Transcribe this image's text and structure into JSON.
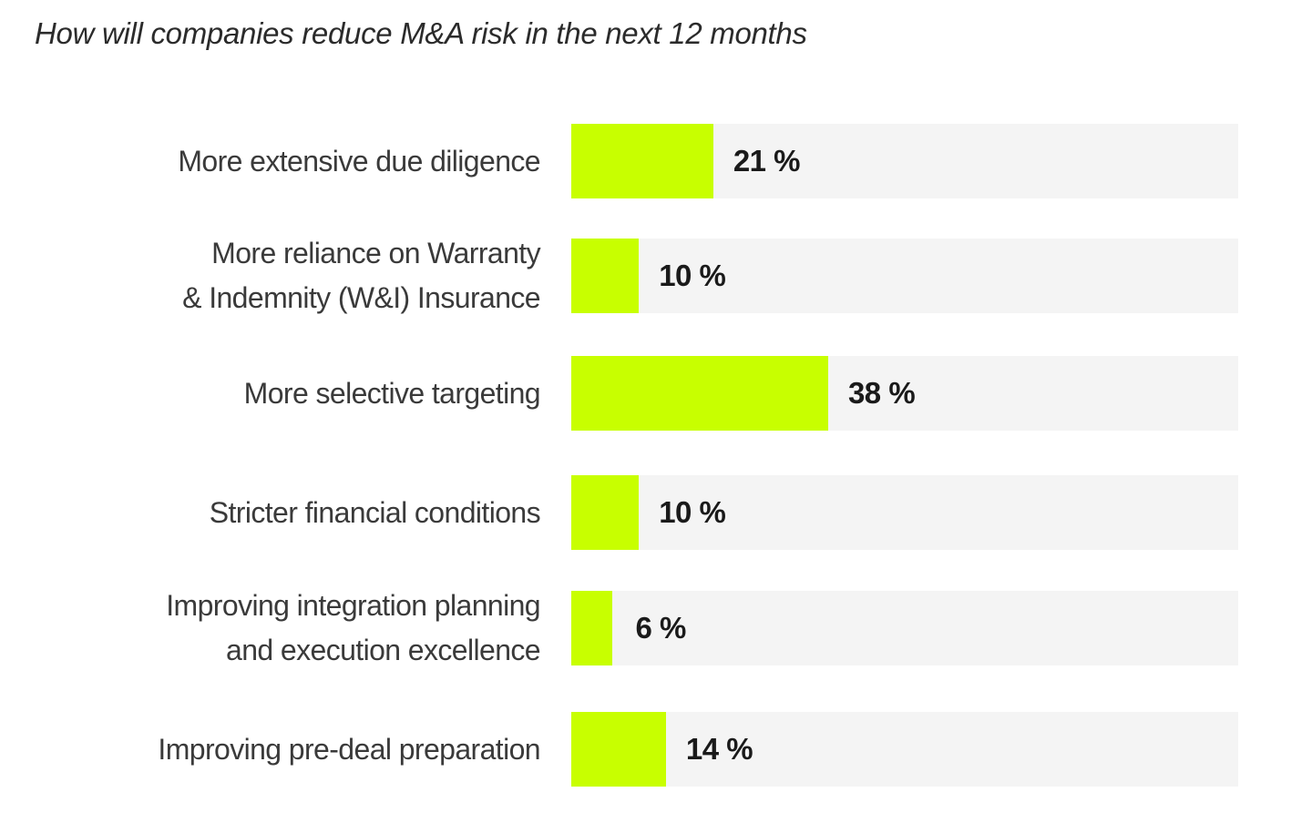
{
  "chart_data": {
    "type": "bar",
    "orientation": "horizontal",
    "title": "How will companies reduce M&A risk in the next 12 months",
    "xlabel": "",
    "ylabel": "",
    "xlim": [
      0,
      100
    ],
    "grid": false,
    "categories": [
      [
        "More extensive due diligence"
      ],
      [
        "More reliance on Warranty",
        "& Indemnity (W&I) Insurance"
      ],
      [
        "More selective targeting"
      ],
      [
        "Stricter financial conditions"
      ],
      [
        "Improving integration planning",
        "and execution excellence"
      ],
      [
        "Improving pre-deal preparation"
      ]
    ],
    "values": [
      21,
      10,
      38,
      10,
      6,
      14
    ],
    "value_labels": [
      "21 %",
      "10 %",
      "38 %",
      "10 %",
      "6 %",
      "14 %"
    ],
    "colors": {
      "bar": "#c8ff00",
      "track": "#f4f4f4",
      "text": "#3a3a3a",
      "value_text": "#1a1a1a"
    }
  }
}
